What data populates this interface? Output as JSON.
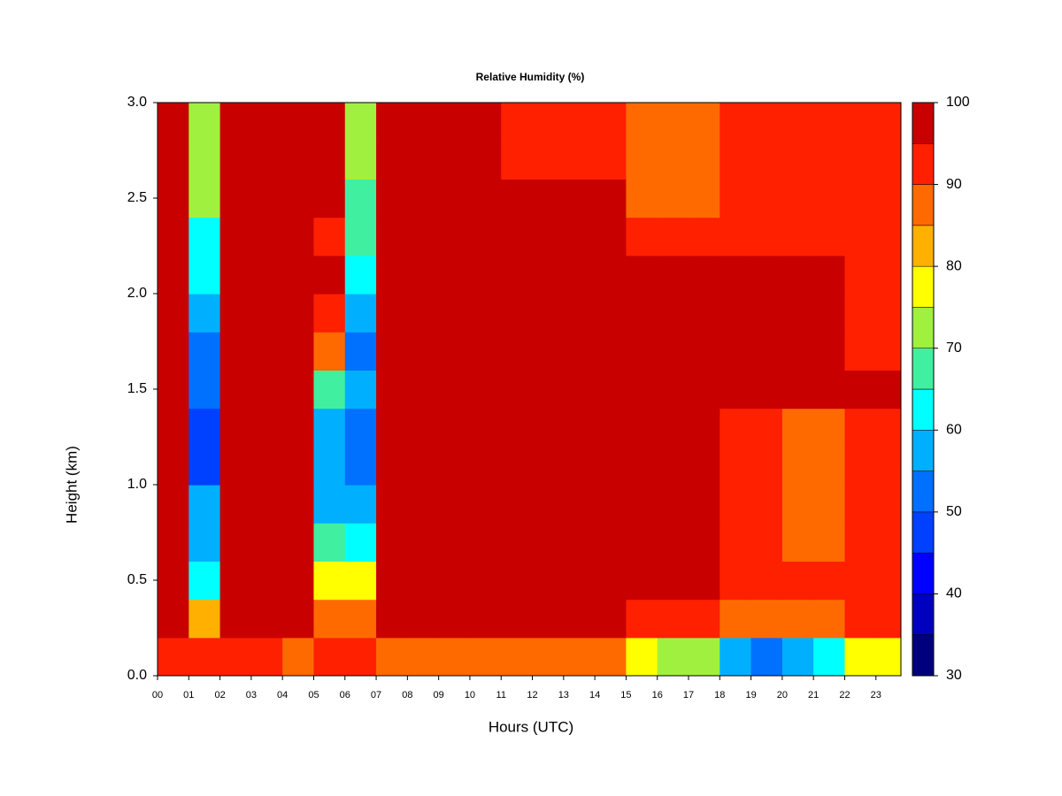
{
  "chart_data": {
    "type": "heatmap",
    "title": "Relative Humidity (%)",
    "xlabel": "Hours (UTC)",
    "ylabel": "Height (km)",
    "x": [
      0.5,
      1.5,
      2.5,
      3.5,
      4.5,
      5.5,
      6.5,
      7.5,
      8.5,
      9.5,
      10.5,
      11.5,
      12.5,
      13.5,
      14.5,
      15.5,
      16.5,
      17.5,
      18.5,
      19.5,
      20.5,
      21.5,
      22.5,
      23.5
    ],
    "y": [
      0.1,
      0.3,
      0.5,
      0.7,
      0.9,
      1.1,
      1.3,
      1.5,
      1.7,
      1.9,
      2.1,
      2.3,
      2.5,
      2.7,
      2.9
    ],
    "z": [
      [
        92,
        90,
        92,
        90,
        88,
        92,
        93,
        88,
        88,
        88,
        88,
        85,
        85,
        85,
        85,
        75,
        70,
        70,
        55,
        50,
        55,
        62,
        78,
        78
      ],
      [
        97,
        80,
        97,
        97,
        97,
        85,
        85,
        97,
        97,
        97,
        97,
        97,
        97,
        97,
        97,
        92,
        92,
        92,
        85,
        85,
        85,
        85,
        90,
        90
      ],
      [
        97,
        60,
        97,
        97,
        97,
        78,
        75,
        97,
        97,
        97,
        97,
        97,
        97,
        97,
        97,
        96,
        96,
        96,
        90,
        90,
        90,
        90,
        91,
        91
      ],
      [
        97,
        58,
        97,
        97,
        97,
        68,
        62,
        97,
        97,
        97,
        97,
        97,
        97,
        97,
        97,
        96,
        96,
        96,
        92,
        92,
        88,
        88,
        91,
        91
      ],
      [
        97,
        55,
        97,
        97,
        97,
        58,
        57,
        97,
        97,
        97,
        97,
        97,
        97,
        97,
        97,
        96,
        96,
        96,
        92,
        92,
        88,
        88,
        91,
        91
      ],
      [
        97,
        45,
        97,
        97,
        97,
        55,
        52,
        97,
        97,
        97,
        97,
        97,
        97,
        97,
        97,
        96,
        96,
        96,
        92,
        92,
        88,
        88,
        91,
        91
      ],
      [
        97,
        48,
        97,
        97,
        97,
        55,
        52,
        97,
        97,
        97,
        97,
        97,
        97,
        97,
        97,
        96,
        96,
        96,
        92,
        92,
        88,
        88,
        91,
        91
      ],
      [
        97,
        52,
        97,
        97,
        97,
        65,
        55,
        97,
        97,
        97,
        97,
        97,
        97,
        97,
        97,
        96,
        96,
        96,
        96,
        96,
        96,
        96,
        96,
        96
      ],
      [
        97,
        50,
        97,
        97,
        97,
        85,
        52,
        97,
        97,
        97,
        97,
        97,
        97,
        97,
        97,
        96,
        96,
        96,
        95,
        95,
        95,
        95,
        94,
        94
      ],
      [
        97,
        55,
        97,
        97,
        97,
        93,
        55,
        97,
        97,
        97,
        97,
        97,
        97,
        97,
        97,
        96,
        96,
        96,
        95,
        95,
        95,
        95,
        94,
        94
      ],
      [
        97,
        60,
        97,
        97,
        97,
        95,
        60,
        97,
        97,
        97,
        97,
        97,
        97,
        97,
        97,
        96,
        96,
        96,
        96,
        96,
        96,
        96,
        94,
        94
      ],
      [
        97,
        62,
        97,
        97,
        97,
        90,
        65,
        97,
        97,
        97,
        97,
        97,
        97,
        97,
        97,
        90,
        90,
        90,
        90,
        90,
        90,
        90,
        91,
        91
      ],
      [
        97,
        70,
        97,
        97,
        97,
        95,
        68,
        97,
        97,
        97,
        97,
        97,
        97,
        97,
        97,
        88,
        88,
        88,
        90,
        90,
        90,
        90,
        91,
        91
      ],
      [
        97,
        72,
        97,
        97,
        97,
        97,
        70,
        97,
        97,
        97,
        97,
        93,
        93,
        93,
        93,
        88,
        88,
        88,
        90,
        90,
        90,
        90,
        91,
        91
      ],
      [
        97,
        72,
        97,
        97,
        97,
        97,
        72,
        97,
        97,
        97,
        97,
        93,
        93,
        93,
        93,
        88,
        88,
        88,
        90,
        90,
        90,
        90,
        91,
        91
      ]
    ],
    "levels": [
      30,
      35,
      40,
      45,
      50,
      55,
      60,
      65,
      70,
      75,
      80,
      85,
      90,
      95,
      100
    ],
    "colors": [
      "#00007f",
      "#0000bf",
      "#0000ff",
      "#0040ff",
      "#0070ff",
      "#00b0ff",
      "#00ffff",
      "#40f0a0",
      "#a0f040",
      "#ffff00",
      "#ffb000",
      "#ff6a00",
      "#ff2000",
      "#c80000",
      "#800000"
    ],
    "colorbar_ticks": [
      30,
      40,
      50,
      60,
      70,
      80,
      90,
      100
    ],
    "xlim": [
      0,
      23.8
    ],
    "ylim": [
      0,
      3
    ],
    "xticks": [
      {
        "value": 0,
        "label": "00"
      },
      {
        "value": 1,
        "label": "01"
      },
      {
        "value": 2,
        "label": "02"
      },
      {
        "value": 3,
        "label": "03"
      },
      {
        "value": 4,
        "label": "04"
      },
      {
        "value": 5,
        "label": "05"
      },
      {
        "value": 6,
        "label": "06"
      },
      {
        "value": 7,
        "label": "07"
      },
      {
        "value": 8,
        "label": "08"
      },
      {
        "value": 9,
        "label": "09"
      },
      10,
      11,
      12,
      13,
      14,
      15,
      16,
      17,
      18,
      19,
      20,
      21,
      22,
      23
    ],
    "yticks": [
      {
        "value": 0,
        "label": "0.0"
      },
      0.5,
      {
        "value": 1,
        "label": "1.0"
      },
      1.5,
      {
        "value": 2,
        "label": "2.0"
      },
      2.5,
      {
        "value": 3,
        "label": "3.0"
      }
    ]
  }
}
